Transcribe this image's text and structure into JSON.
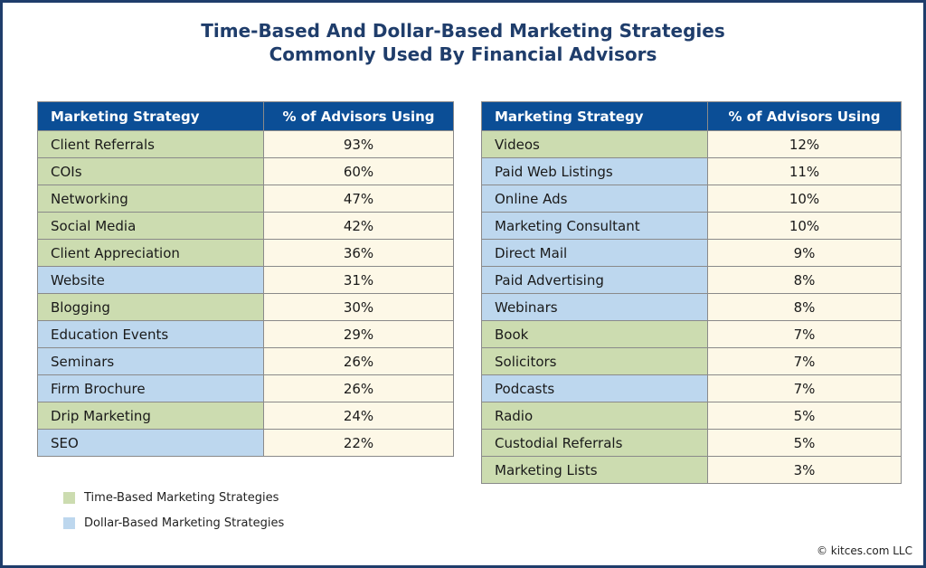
{
  "title_line1": "Time-Based And Dollar-Based Marketing Strategies",
  "title_line2": "Commonly Used By Financial Advisors",
  "colors": {
    "header": "#0b4e96",
    "time_based": "#ccdcb0",
    "dollar_based": "#bdd7ee",
    "value_cell": "#fdf8e7",
    "title": "#1f3d6b"
  },
  "chart_data": {
    "type": "table",
    "columns": [
      "Marketing Strategy",
      "% of Advisors Using"
    ],
    "tables": [
      {
        "rows": [
          {
            "strategy": "Client Referrals",
            "pct": "93%",
            "category": "time"
          },
          {
            "strategy": "COIs",
            "pct": "60%",
            "category": "time"
          },
          {
            "strategy": "Networking",
            "pct": "47%",
            "category": "time"
          },
          {
            "strategy": "Social Media",
            "pct": "42%",
            "category": "time"
          },
          {
            "strategy": "Client Appreciation",
            "pct": "36%",
            "category": "time"
          },
          {
            "strategy": "Website",
            "pct": "31%",
            "category": "dollar"
          },
          {
            "strategy": "Blogging",
            "pct": "30%",
            "category": "time"
          },
          {
            "strategy": "Education Events",
            "pct": "29%",
            "category": "dollar"
          },
          {
            "strategy": "Seminars",
            "pct": "26%",
            "category": "dollar"
          },
          {
            "strategy": "Firm Brochure",
            "pct": "26%",
            "category": "dollar"
          },
          {
            "strategy": "Drip Marketing",
            "pct": "24%",
            "category": "time"
          },
          {
            "strategy": "SEO",
            "pct": "22%",
            "category": "dollar"
          }
        ]
      },
      {
        "rows": [
          {
            "strategy": "Videos",
            "pct": "12%",
            "category": "time"
          },
          {
            "strategy": "Paid Web Listings",
            "pct": "11%",
            "category": "dollar"
          },
          {
            "strategy": "Online Ads",
            "pct": "10%",
            "category": "dollar"
          },
          {
            "strategy": "Marketing Consultant",
            "pct": "10%",
            "category": "dollar"
          },
          {
            "strategy": "Direct Mail",
            "pct": "9%",
            "category": "dollar"
          },
          {
            "strategy": "Paid Advertising",
            "pct": "8%",
            "category": "dollar"
          },
          {
            "strategy": "Webinars",
            "pct": "8%",
            "category": "dollar"
          },
          {
            "strategy": "Book",
            "pct": "7%",
            "category": "time"
          },
          {
            "strategy": "Solicitors",
            "pct": "7%",
            "category": "time"
          },
          {
            "strategy": "Podcasts",
            "pct": "7%",
            "category": "dollar"
          },
          {
            "strategy": "Radio",
            "pct": "5%",
            "category": "time"
          },
          {
            "strategy": "Custodial Referrals",
            "pct": "5%",
            "category": "time"
          },
          {
            "strategy": "Marketing Lists",
            "pct": "3%",
            "category": "time"
          }
        ]
      }
    ],
    "legend": [
      {
        "label": "Time-Based Marketing Strategies",
        "category": "time"
      },
      {
        "label": "Dollar-Based Marketing Strategies",
        "category": "dollar"
      }
    ]
  },
  "credit": "© kitces.com LLC"
}
